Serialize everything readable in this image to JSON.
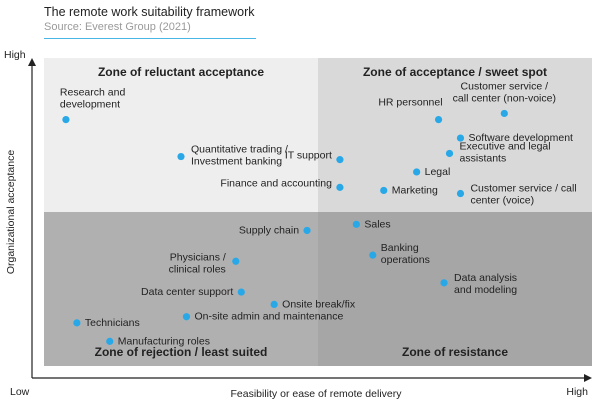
{
  "header": {
    "title": "The remote work suitability framework",
    "source": "Source: Everest Group (2021)"
  },
  "colors": {
    "zone_top_left": "#eeeeee",
    "zone_top_right": "#d9d9d9",
    "zone_bottom_left": "#b0b0b0",
    "zone_bottom_right": "#a6a6a6",
    "point": "#29a8e8",
    "rule": "#49b6e8"
  },
  "chart_data": {
    "type": "scatter",
    "title": "The remote work suitability framework",
    "xlabel": "Feasibility or ease of remote delivery",
    "ylabel": "Organizational acceptance",
    "x_ticks": {
      "low": "Low",
      "high": "High"
    },
    "y_ticks": {
      "high": "High"
    },
    "xlim": [
      0,
      1
    ],
    "ylim": [
      0,
      1
    ],
    "grid": false,
    "zones": [
      {
        "name": "Zone of reluctant acceptance",
        "quadrant": "top-left"
      },
      {
        "name": "Zone of acceptance / sweet spot",
        "quadrant": "top-right"
      },
      {
        "name": "Zone of rejection / least suited",
        "quadrant": "bottom-left"
      },
      {
        "name": "Zone of resistance",
        "quadrant": "bottom-right"
      }
    ],
    "points": [
      {
        "label": [
          "Research and",
          "development"
        ],
        "x": 0.04,
        "y": 0.8
      },
      {
        "label": [
          "Quantitative trading /",
          "Investment banking"
        ],
        "x": 0.25,
        "y": 0.68
      },
      {
        "label": [
          "IT support"
        ],
        "x": 0.54,
        "y": 0.67
      },
      {
        "label": [
          "Finance and accounting"
        ],
        "x": 0.54,
        "y": 0.58
      },
      {
        "label": [
          "HR personnel"
        ],
        "x": 0.72,
        "y": 0.8
      },
      {
        "label": [
          "Customer service /",
          "call center (non-voice)"
        ],
        "x": 0.84,
        "y": 0.82
      },
      {
        "label": [
          "Software development"
        ],
        "x": 0.76,
        "y": 0.74
      },
      {
        "label": [
          "Executive and legal",
          "assistants"
        ],
        "x": 0.74,
        "y": 0.69
      },
      {
        "label": [
          "Legal"
        ],
        "x": 0.68,
        "y": 0.63
      },
      {
        "label": [
          "Marketing"
        ],
        "x": 0.62,
        "y": 0.57
      },
      {
        "label": [
          "Customer service / call",
          "center (voice)"
        ],
        "x": 0.76,
        "y": 0.56
      },
      {
        "label": [
          "Sales"
        ],
        "x": 0.57,
        "y": 0.46
      },
      {
        "label": [
          "Supply chain"
        ],
        "x": 0.48,
        "y": 0.44
      },
      {
        "label": [
          "Banking",
          "operations"
        ],
        "x": 0.6,
        "y": 0.36
      },
      {
        "label": [
          "Data analysis",
          "and modeling"
        ],
        "x": 0.73,
        "y": 0.27
      },
      {
        "label": [
          "Physicians /",
          "clinical roles"
        ],
        "x": 0.35,
        "y": 0.34
      },
      {
        "label": [
          "Data center support"
        ],
        "x": 0.36,
        "y": 0.24
      },
      {
        "label": [
          "Onsite break/fix"
        ],
        "x": 0.42,
        "y": 0.2
      },
      {
        "label": [
          "On-site admin and maintenance"
        ],
        "x": 0.26,
        "y": 0.16
      },
      {
        "label": [
          "Technicians"
        ],
        "x": 0.06,
        "y": 0.14
      },
      {
        "label": [
          "Manufacturing roles"
        ],
        "x": 0.12,
        "y": 0.08
      }
    ]
  }
}
